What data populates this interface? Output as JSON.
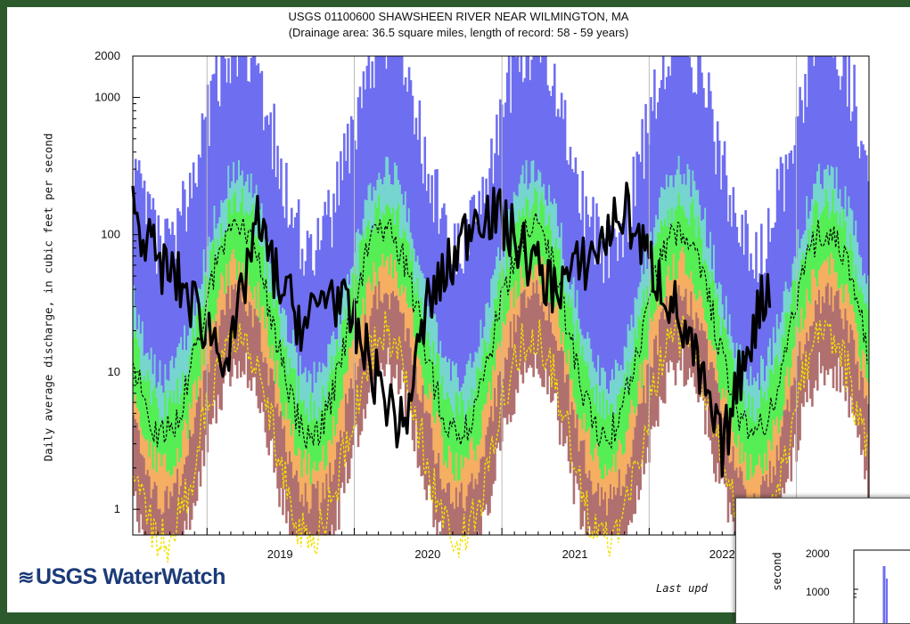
{
  "chart_data": {
    "type": "area",
    "title": "USGS 01100600 SHAWSHEEN RIVER NEAR WILMINGTON, MA",
    "subtitle": "(Drainage area: 36.5 square miles, length of record: 58 - 59 years)",
    "ylabel": "Daily average discharge, in cubic feet per second",
    "xlabel": "",
    "yscale": "log",
    "ylim": [
      0.65,
      2000
    ],
    "y_ticks": [
      "2000",
      "1000",
      "100",
      "10",
      "1"
    ],
    "x_ticks": [
      "2019",
      "2020",
      "2021",
      "2022"
    ],
    "xlim": [
      "2018-07-01",
      "2023-06-30"
    ],
    "grid": "vertical lines at year boundaries",
    "legend": "none",
    "percentile_bands": [
      {
        "band": "max-90th",
        "color": "#6e6ef0"
      },
      {
        "band": "90th-75th",
        "color": "#76d5cf"
      },
      {
        "band": "75th-25th",
        "color": "#55ee55"
      },
      {
        "band": "25th-10th",
        "color": "#f5ae62"
      },
      {
        "band": "10th-min",
        "color": "#b07070"
      }
    ],
    "median_line": {
      "style": "dashed",
      "color": "#000000"
    },
    "min_line": {
      "style": "dashed",
      "color": "#f2e200"
    },
    "observed_flow": {
      "color": "#000000",
      "x": [
        "2018-07",
        "2018-09",
        "2018-11",
        "2019-01",
        "2019-03",
        "2019-05",
        "2019-07",
        "2019-09",
        "2019-11",
        "2020-01",
        "2020-03",
        "2020-05",
        "2020-07",
        "2020-09",
        "2020-11",
        "2021-01",
        "2021-03",
        "2021-05",
        "2021-07",
        "2021-09",
        "2021-11",
        "2022-01",
        "2022-03",
        "2022-05",
        "2022-07",
        "2022-09",
        "2022-11"
      ],
      "y": [
        150,
        60,
        40,
        20,
        12,
        120,
        40,
        20,
        40,
        20,
        8,
        3.5,
        30,
        60,
        150,
        120,
        70,
        40,
        50,
        80,
        150,
        60,
        30,
        10,
        2.5,
        15,
        50
      ]
    }
  },
  "logo": {
    "text": "USGS WaterWatch",
    "wave": "≋"
  },
  "footer": {
    "last_updated": "Last upd"
  },
  "inset": {
    "ytick_top": "2000",
    "ytick_mid": "1000",
    "ylabel": "second"
  }
}
